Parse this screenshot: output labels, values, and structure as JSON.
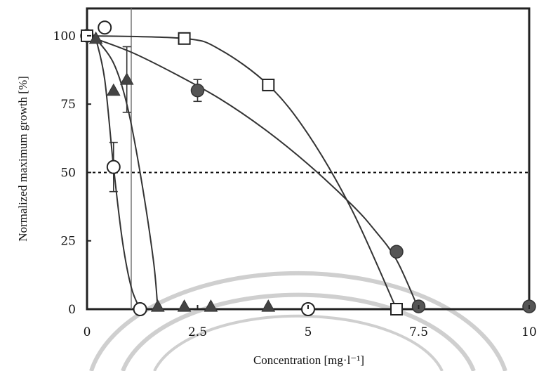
{
  "chart_data": {
    "type": "scatter",
    "title": "",
    "xlabel": "Concentration [mg·l⁻¹]",
    "ylabel": "Normalized maximum growth [%]",
    "xlim": [
      0,
      10
    ],
    "ylim": [
      0,
      110
    ],
    "x_ticks": [
      "0",
      "2.5",
      "5",
      "7.5",
      "10"
    ],
    "y_ticks": [
      "0",
      "25",
      "50",
      "75",
      "100"
    ],
    "grid": false,
    "reference_line": {
      "y": 50,
      "style": "dotted"
    },
    "series": [
      {
        "marker": "filled-circle",
        "x": [
          0,
          2.5,
          7.0,
          7.5,
          10
        ],
        "y": [
          100,
          80,
          21,
          1,
          1
        ],
        "yerr": [
          0,
          4,
          0,
          0,
          0
        ],
        "fit_x": [
          0,
          1,
          2,
          3,
          4,
          5,
          6,
          6.5,
          7.0,
          7.5
        ],
        "fit_y": [
          100,
          94,
          86,
          77,
          66,
          53,
          38,
          29,
          18,
          0
        ]
      },
      {
        "marker": "open-square",
        "x": [
          0,
          2.2,
          4.1,
          7.0
        ],
        "y": [
          100,
          99,
          82,
          0
        ],
        "fit_x": [
          0,
          2.2,
          3,
          4.1,
          5,
          6,
          7.0
        ],
        "fit_y": [
          100,
          99,
          95,
          82,
          64,
          36,
          0
        ]
      },
      {
        "marker": "filled-triangle",
        "x": [
          0.2,
          0.6,
          0.9,
          1.6,
          2.2,
          2.8,
          4.1
        ],
        "y": [
          99,
          80,
          84,
          1,
          1,
          1,
          1
        ],
        "yerr": [
          0,
          0,
          12,
          0,
          0,
          0,
          0
        ],
        "fit_x": [
          0.2,
          0.6,
          0.9,
          1.2,
          1.5,
          1.6
        ],
        "fit_y": [
          99,
          90,
          75,
          50,
          18,
          0
        ]
      },
      {
        "marker": "open-circle",
        "x": [
          0.4,
          0.6,
          1.2,
          5.0
        ],
        "y": [
          103,
          52,
          0,
          0
        ],
        "yerr": [
          0,
          9,
          0,
          0
        ],
        "fit_x": [
          0.2,
          0.4,
          0.6,
          0.8,
          1.0,
          1.2
        ],
        "fit_y": [
          99,
          84,
          52,
          25,
          8,
          0
        ]
      }
    ],
    "vertical_marker": {
      "x": 1
    }
  }
}
